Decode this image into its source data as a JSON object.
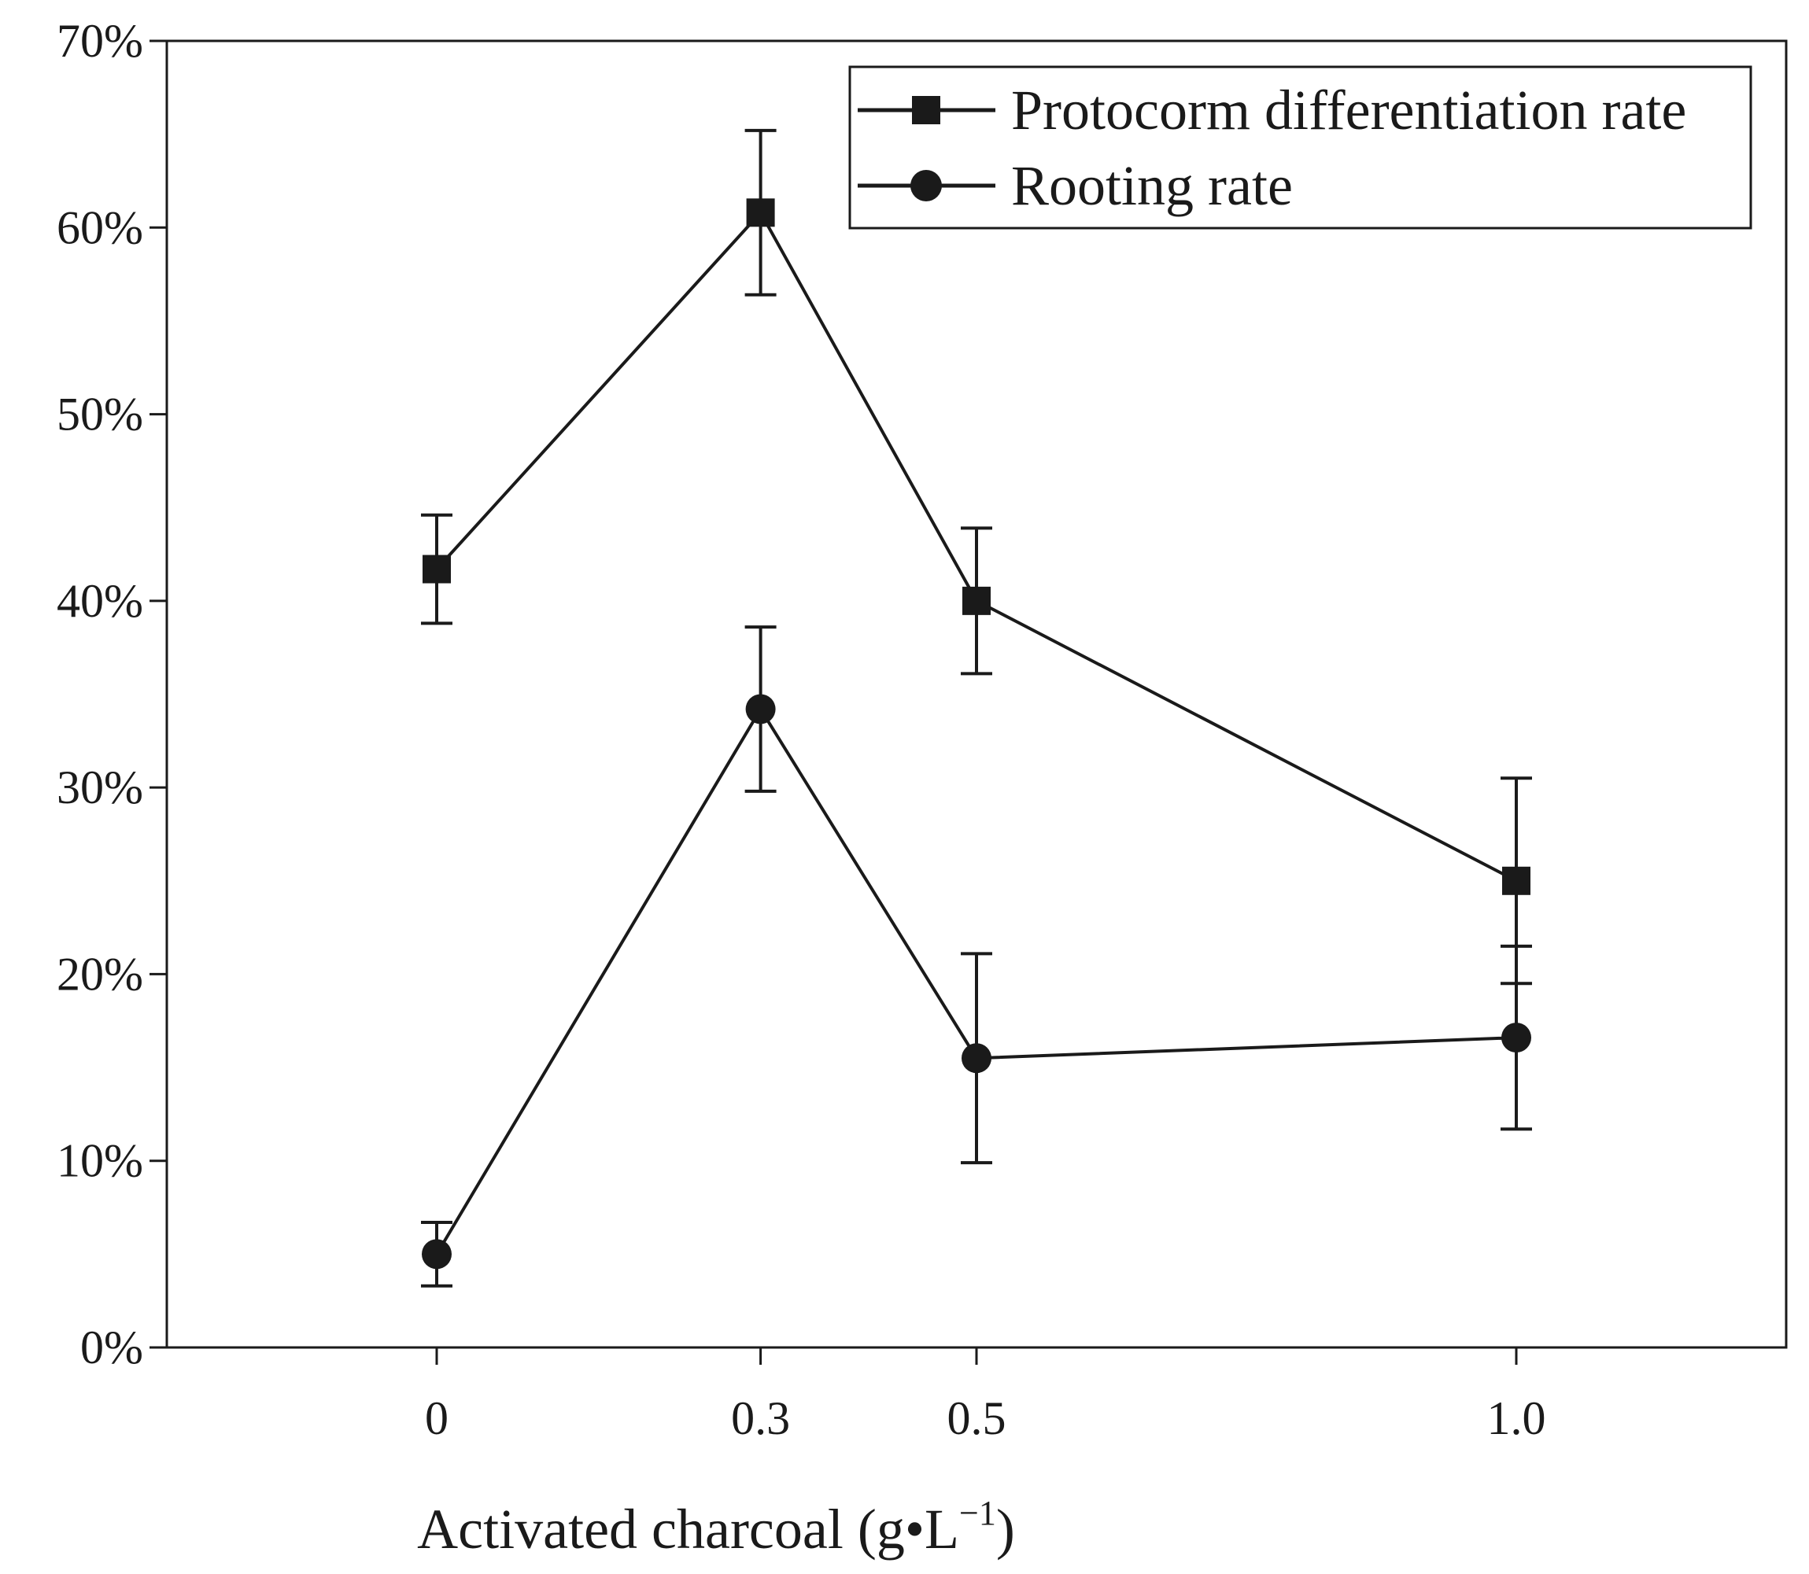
{
  "chart_data": {
    "type": "line",
    "title": "",
    "x": [
      0,
      0.3,
      0.5,
      1.0
    ],
    "x_tick_labels": [
      "0",
      "0.3",
      "0.5",
      "1.0"
    ],
    "xlim": [
      -0.25,
      1.25
    ],
    "ylim": [
      0,
      0.7
    ],
    "y_ticks": [
      0,
      0.1,
      0.2,
      0.3,
      0.4,
      0.5,
      0.6,
      0.7
    ],
    "y_tick_labels": [
      "0%",
      "10%",
      "20%",
      "30%",
      "40%",
      "50%",
      "60%",
      "70%"
    ],
    "xlabel_main": "Activated charcoal (g•L",
    "xlabel_sup": "−1",
    "xlabel_close": ")",
    "ylabel": "",
    "grid": false,
    "legend_position": "top-right",
    "series": [
      {
        "name": "Protocorm differentiation rate",
        "marker": "square",
        "values": [
          0.417,
          0.608,
          0.4,
          0.25
        ],
        "error": [
          0.029,
          0.044,
          0.039,
          0.055
        ]
      },
      {
        "name": "Rooting rate",
        "marker": "circle",
        "values": [
          0.05,
          0.342,
          0.155,
          0.166
        ],
        "error": [
          0.017,
          0.044,
          0.056,
          0.049
        ]
      }
    ],
    "colors": {
      "line": "#1a1a1a",
      "axis": "#1a1a1a",
      "background": "#ffffff"
    }
  }
}
